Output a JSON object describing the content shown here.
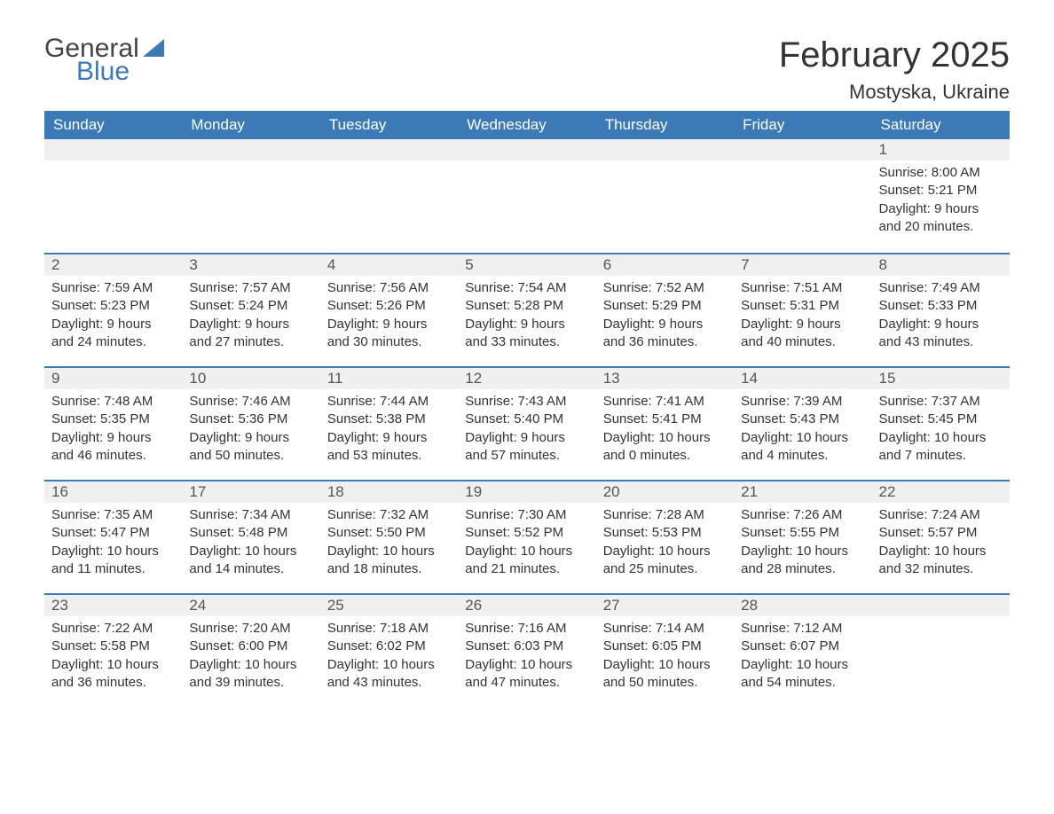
{
  "brand": {
    "part1": "General",
    "part2": "Blue"
  },
  "title": "February 2025",
  "location": "Mostyska, Ukraine",
  "colors": {
    "header_bg": "#3b79b7",
    "header_text": "#ffffff",
    "daynum_bg": "#f0f0f0",
    "border": "#3b79b7",
    "text": "#333333",
    "background": "#ffffff"
  },
  "typography": {
    "title_fontsize": 40,
    "location_fontsize": 22,
    "header_fontsize": 17,
    "body_fontsize": 15
  },
  "weekdays": [
    "Sunday",
    "Monday",
    "Tuesday",
    "Wednesday",
    "Thursday",
    "Friday",
    "Saturday"
  ],
  "weeks": [
    [
      null,
      null,
      null,
      null,
      null,
      null,
      {
        "n": "1",
        "sunrise": "Sunrise: 8:00 AM",
        "sunset": "Sunset: 5:21 PM",
        "daylight": "Daylight: 9 hours and 20 minutes."
      }
    ],
    [
      {
        "n": "2",
        "sunrise": "Sunrise: 7:59 AM",
        "sunset": "Sunset: 5:23 PM",
        "daylight": "Daylight: 9 hours and 24 minutes."
      },
      {
        "n": "3",
        "sunrise": "Sunrise: 7:57 AM",
        "sunset": "Sunset: 5:24 PM",
        "daylight": "Daylight: 9 hours and 27 minutes."
      },
      {
        "n": "4",
        "sunrise": "Sunrise: 7:56 AM",
        "sunset": "Sunset: 5:26 PM",
        "daylight": "Daylight: 9 hours and 30 minutes."
      },
      {
        "n": "5",
        "sunrise": "Sunrise: 7:54 AM",
        "sunset": "Sunset: 5:28 PM",
        "daylight": "Daylight: 9 hours and 33 minutes."
      },
      {
        "n": "6",
        "sunrise": "Sunrise: 7:52 AM",
        "sunset": "Sunset: 5:29 PM",
        "daylight": "Daylight: 9 hours and 36 minutes."
      },
      {
        "n": "7",
        "sunrise": "Sunrise: 7:51 AM",
        "sunset": "Sunset: 5:31 PM",
        "daylight": "Daylight: 9 hours and 40 minutes."
      },
      {
        "n": "8",
        "sunrise": "Sunrise: 7:49 AM",
        "sunset": "Sunset: 5:33 PM",
        "daylight": "Daylight: 9 hours and 43 minutes."
      }
    ],
    [
      {
        "n": "9",
        "sunrise": "Sunrise: 7:48 AM",
        "sunset": "Sunset: 5:35 PM",
        "daylight": "Daylight: 9 hours and 46 minutes."
      },
      {
        "n": "10",
        "sunrise": "Sunrise: 7:46 AM",
        "sunset": "Sunset: 5:36 PM",
        "daylight": "Daylight: 9 hours and 50 minutes."
      },
      {
        "n": "11",
        "sunrise": "Sunrise: 7:44 AM",
        "sunset": "Sunset: 5:38 PM",
        "daylight": "Daylight: 9 hours and 53 minutes."
      },
      {
        "n": "12",
        "sunrise": "Sunrise: 7:43 AM",
        "sunset": "Sunset: 5:40 PM",
        "daylight": "Daylight: 9 hours and 57 minutes."
      },
      {
        "n": "13",
        "sunrise": "Sunrise: 7:41 AM",
        "sunset": "Sunset: 5:41 PM",
        "daylight": "Daylight: 10 hours and 0 minutes."
      },
      {
        "n": "14",
        "sunrise": "Sunrise: 7:39 AM",
        "sunset": "Sunset: 5:43 PM",
        "daylight": "Daylight: 10 hours and 4 minutes."
      },
      {
        "n": "15",
        "sunrise": "Sunrise: 7:37 AM",
        "sunset": "Sunset: 5:45 PM",
        "daylight": "Daylight: 10 hours and 7 minutes."
      }
    ],
    [
      {
        "n": "16",
        "sunrise": "Sunrise: 7:35 AM",
        "sunset": "Sunset: 5:47 PM",
        "daylight": "Daylight: 10 hours and 11 minutes."
      },
      {
        "n": "17",
        "sunrise": "Sunrise: 7:34 AM",
        "sunset": "Sunset: 5:48 PM",
        "daylight": "Daylight: 10 hours and 14 minutes."
      },
      {
        "n": "18",
        "sunrise": "Sunrise: 7:32 AM",
        "sunset": "Sunset: 5:50 PM",
        "daylight": "Daylight: 10 hours and 18 minutes."
      },
      {
        "n": "19",
        "sunrise": "Sunrise: 7:30 AM",
        "sunset": "Sunset: 5:52 PM",
        "daylight": "Daylight: 10 hours and 21 minutes."
      },
      {
        "n": "20",
        "sunrise": "Sunrise: 7:28 AM",
        "sunset": "Sunset: 5:53 PM",
        "daylight": "Daylight: 10 hours and 25 minutes."
      },
      {
        "n": "21",
        "sunrise": "Sunrise: 7:26 AM",
        "sunset": "Sunset: 5:55 PM",
        "daylight": "Daylight: 10 hours and 28 minutes."
      },
      {
        "n": "22",
        "sunrise": "Sunrise: 7:24 AM",
        "sunset": "Sunset: 5:57 PM",
        "daylight": "Daylight: 10 hours and 32 minutes."
      }
    ],
    [
      {
        "n": "23",
        "sunrise": "Sunrise: 7:22 AM",
        "sunset": "Sunset: 5:58 PM",
        "daylight": "Daylight: 10 hours and 36 minutes."
      },
      {
        "n": "24",
        "sunrise": "Sunrise: 7:20 AM",
        "sunset": "Sunset: 6:00 PM",
        "daylight": "Daylight: 10 hours and 39 minutes."
      },
      {
        "n": "25",
        "sunrise": "Sunrise: 7:18 AM",
        "sunset": "Sunset: 6:02 PM",
        "daylight": "Daylight: 10 hours and 43 minutes."
      },
      {
        "n": "26",
        "sunrise": "Sunrise: 7:16 AM",
        "sunset": "Sunset: 6:03 PM",
        "daylight": "Daylight: 10 hours and 47 minutes."
      },
      {
        "n": "27",
        "sunrise": "Sunrise: 7:14 AM",
        "sunset": "Sunset: 6:05 PM",
        "daylight": "Daylight: 10 hours and 50 minutes."
      },
      {
        "n": "28",
        "sunrise": "Sunrise: 7:12 AM",
        "sunset": "Sunset: 6:07 PM",
        "daylight": "Daylight: 10 hours and 54 minutes."
      },
      null
    ]
  ]
}
